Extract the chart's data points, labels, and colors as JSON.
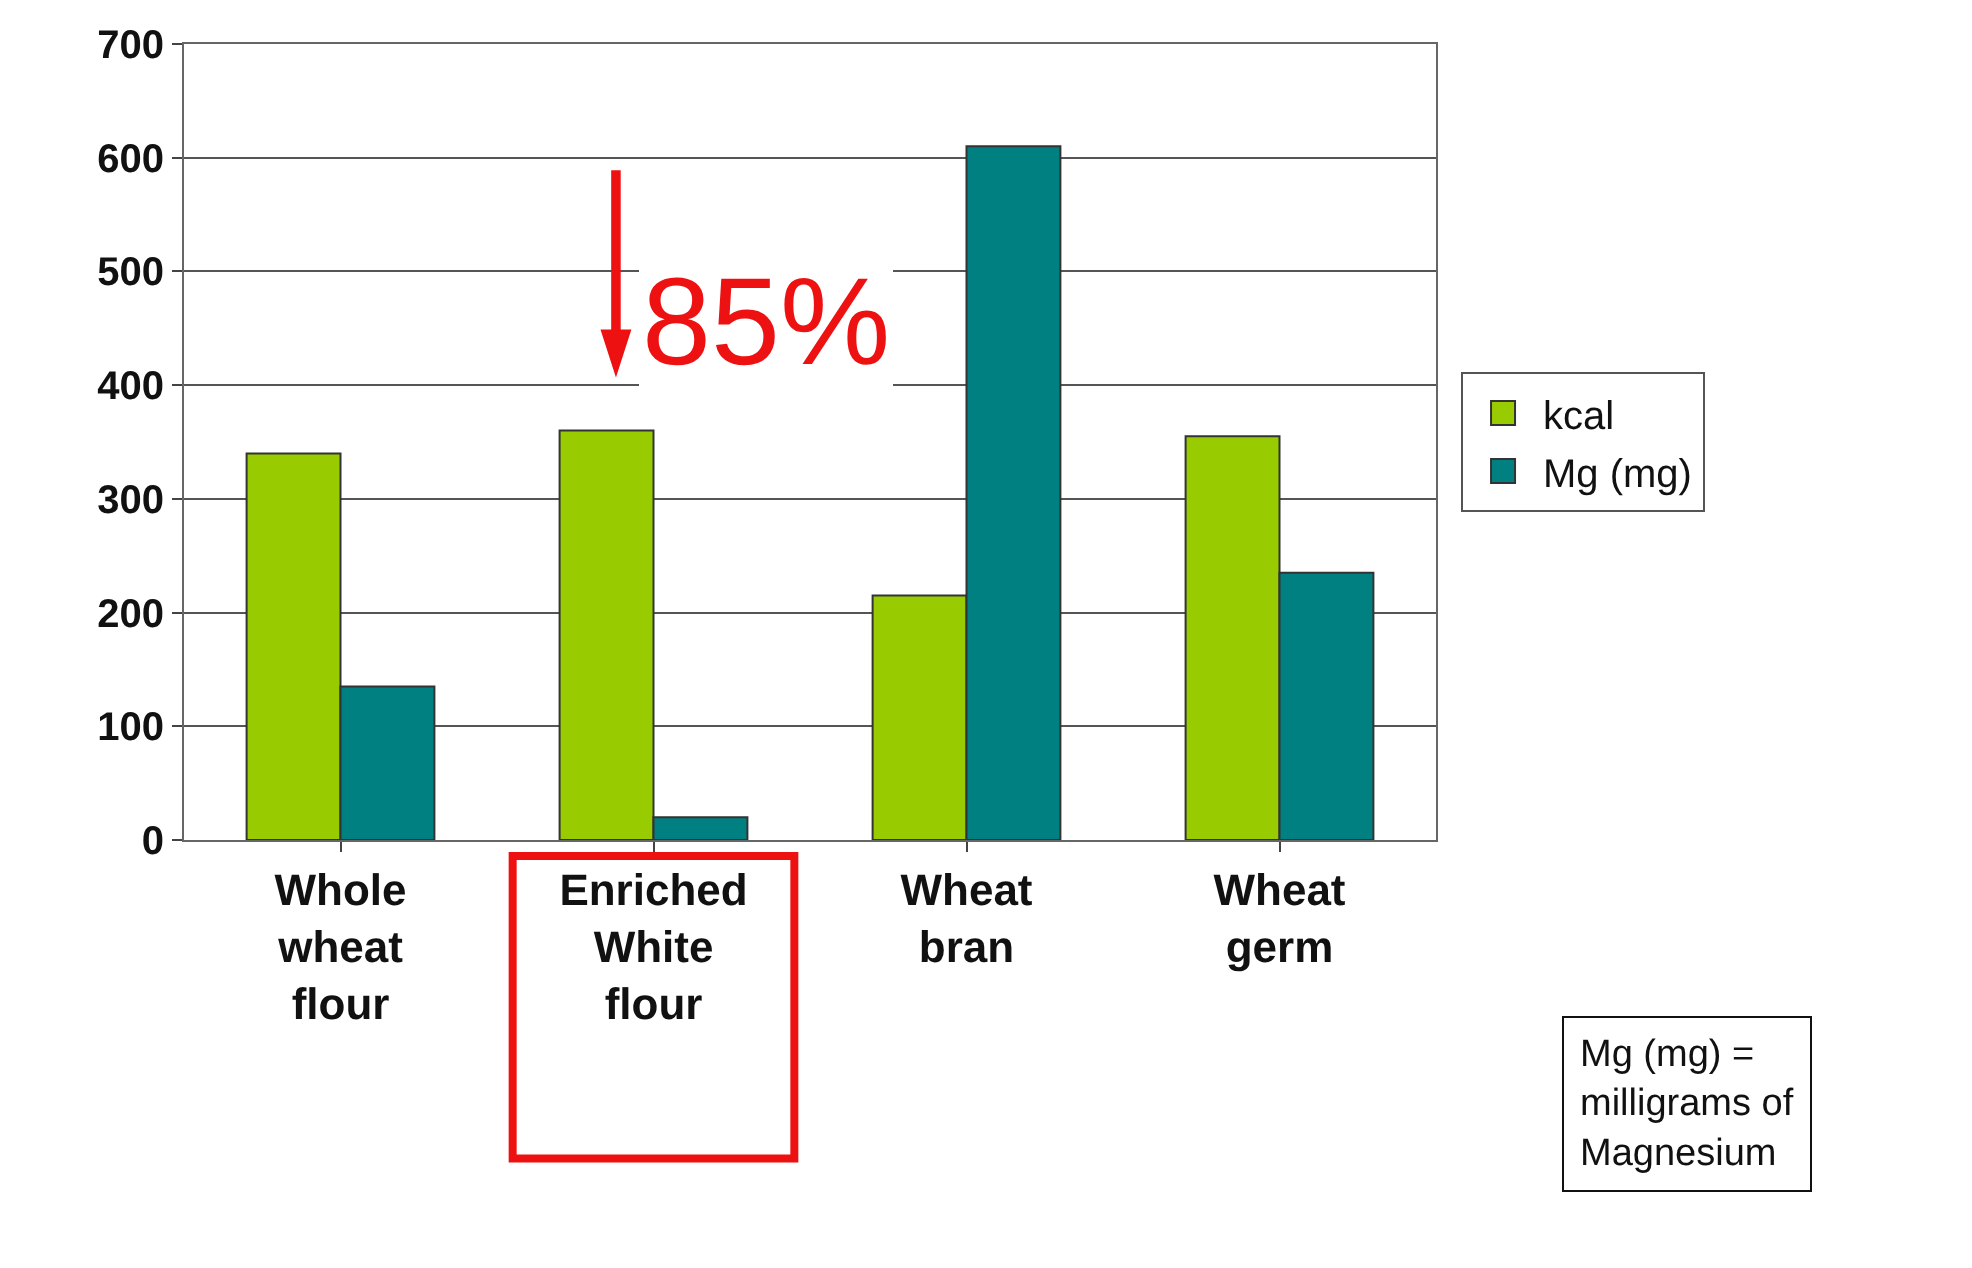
{
  "chart_data": {
    "type": "bar",
    "categories": [
      "Whole\nwheat\nflour",
      "Enriched\nWhite\nflour",
      "Wheat\nbran",
      "Wheat\ngerm"
    ],
    "series": [
      {
        "name": "kcal",
        "color": "#99cc00",
        "values": [
          340,
          360,
          215,
          355
        ]
      },
      {
        "name": "Mg (mg)",
        "color": "#008080",
        "values": [
          135,
          20,
          610,
          235
        ]
      }
    ],
    "ylim": [
      0,
      700
    ],
    "yticks": [
      0,
      100,
      200,
      300,
      400,
      500,
      600,
      700
    ],
    "grid": "y",
    "legend": "right",
    "annotations": [
      "85%",
      "Mg (mg) =\nmilligrams of\nMagnesium"
    ]
  }
}
